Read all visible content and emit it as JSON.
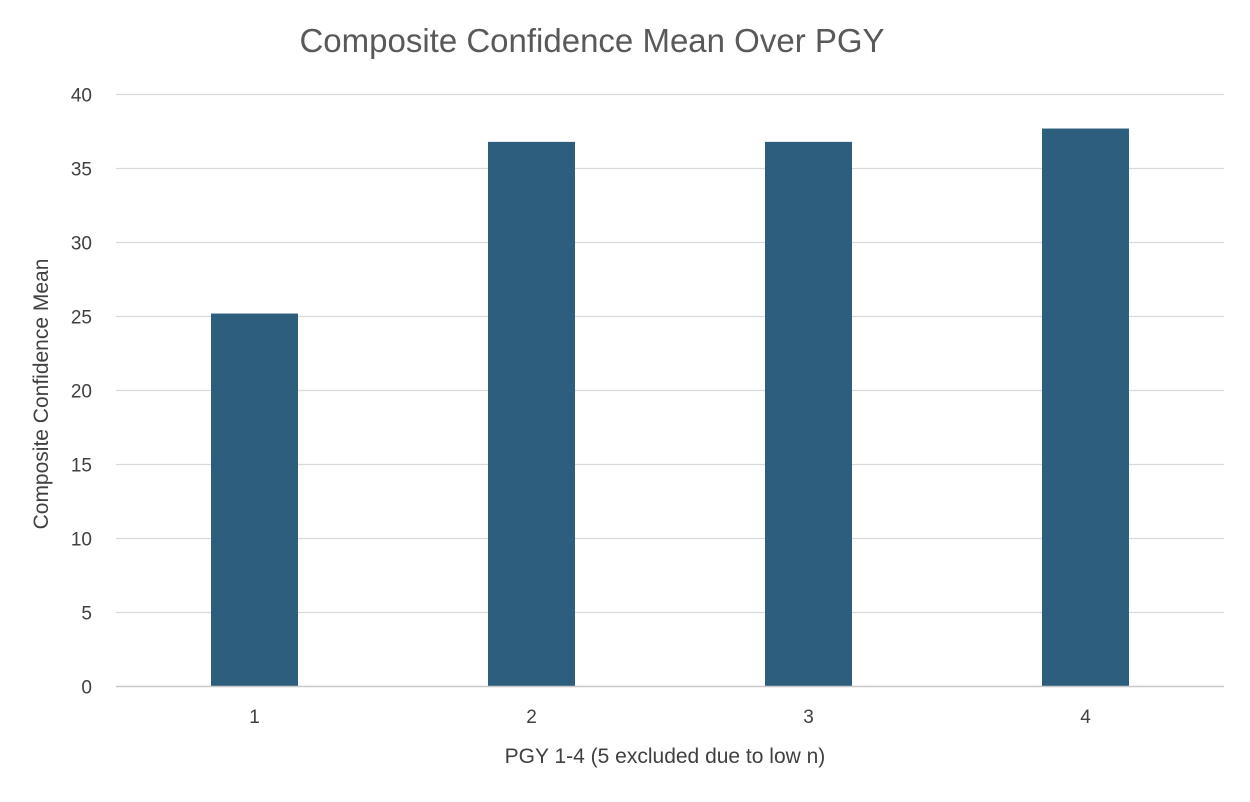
{
  "chart_data": {
    "type": "bar",
    "title": "Composite Confidence Mean Over PGY",
    "xlabel": "PGY 1-4 (5 excluded due to low n)",
    "ylabel": "Composite Confidence Mean",
    "categories": [
      "1",
      "2",
      "3",
      "4"
    ],
    "values": [
      25.2,
      36.8,
      36.8,
      37.7
    ],
    "ylim": [
      0,
      40
    ],
    "yticks": [
      0,
      5,
      10,
      15,
      20,
      25,
      30,
      35,
      40
    ],
    "grid": true,
    "legend": "none",
    "bar_color": "#2E5E7E",
    "grid_color": "#D9D9D9"
  }
}
